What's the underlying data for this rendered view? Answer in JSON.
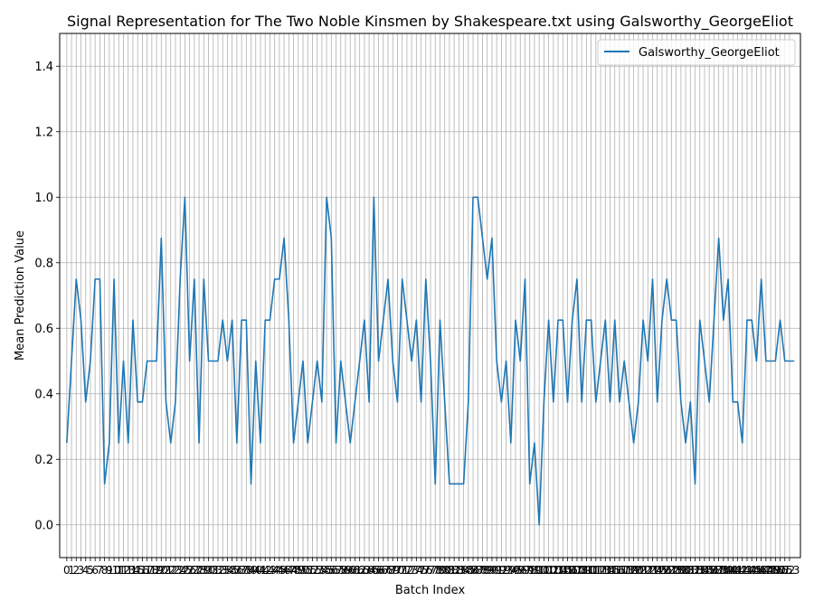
{
  "chart_data": {
    "type": "line",
    "title": "Signal Representation for The Two Noble Kinsmen by Shakespeare.txt using Galsworthy_GeorgeEliot",
    "xlabel": "Batch Index",
    "ylabel": "Mean Prediction Value",
    "ylim": [
      -0.1,
      1.5
    ],
    "yticks": [
      "0.0",
      "0.2",
      "0.4",
      "0.6",
      "0.8",
      "1.0",
      "1.2",
      "1.4"
    ],
    "xlim": [
      -1.5,
      155.3
    ],
    "x_tick_count": 154,
    "grid": true,
    "legend_position": "upper-right",
    "series": [
      {
        "name": "Galsworthy_GeorgeEliot",
        "color": "#1f77b4",
        "values": [
          0.25,
          0.5,
          0.75,
          0.625,
          0.375,
          0.5,
          0.75,
          0.75,
          0.125,
          0.25,
          0.75,
          0.25,
          0.5,
          0.25,
          0.625,
          0.375,
          0.375,
          0.5,
          0.5,
          0.5,
          0.875,
          0.375,
          0.25,
          0.375,
          0.75,
          1.0,
          0.5,
          0.75,
          0.25,
          0.75,
          0.5,
          0.5,
          0.5,
          0.625,
          0.5,
          0.625,
          0.25,
          0.625,
          0.625,
          0.125,
          0.5,
          0.25,
          0.625,
          0.625,
          0.75,
          0.75,
          0.875,
          0.625,
          0.25,
          0.375,
          0.5,
          0.25,
          0.375,
          0.5,
          0.375,
          1.0,
          0.875,
          0.25,
          0.5,
          0.375,
          0.25,
          0.375,
          0.5,
          0.625,
          0.375,
          1.0,
          0.5,
          0.625,
          0.75,
          0.5,
          0.375,
          0.75,
          0.625,
          0.5,
          0.625,
          0.375,
          0.75,
          0.5,
          0.125,
          0.625,
          0.375,
          0.125,
          0.125,
          0.125,
          0.125,
          0.375,
          1.0,
          1.0,
          0.875,
          0.75,
          0.875,
          0.5,
          0.375,
          0.5,
          0.25,
          0.625,
          0.5,
          0.75,
          0.125,
          0.25,
          0.0,
          0.375,
          0.625,
          0.375,
          0.625,
          0.625,
          0.375,
          0.625,
          0.75,
          0.375,
          0.625,
          0.625,
          0.375,
          0.5,
          0.625,
          0.375,
          0.625,
          0.375,
          0.5,
          0.375,
          0.25,
          0.375,
          0.625,
          0.5,
          0.75,
          0.375,
          0.625,
          0.75,
          0.625,
          0.625,
          0.375,
          0.25,
          0.375,
          0.125,
          0.625,
          0.5,
          0.375,
          0.625,
          0.875,
          0.625,
          0.75,
          0.375,
          0.375,
          0.25,
          0.625,
          0.625,
          0.5,
          0.75,
          0.5,
          0.5,
          0.5,
          0.625,
          0.5,
          0.5,
          0.5
        ]
      }
    ]
  }
}
